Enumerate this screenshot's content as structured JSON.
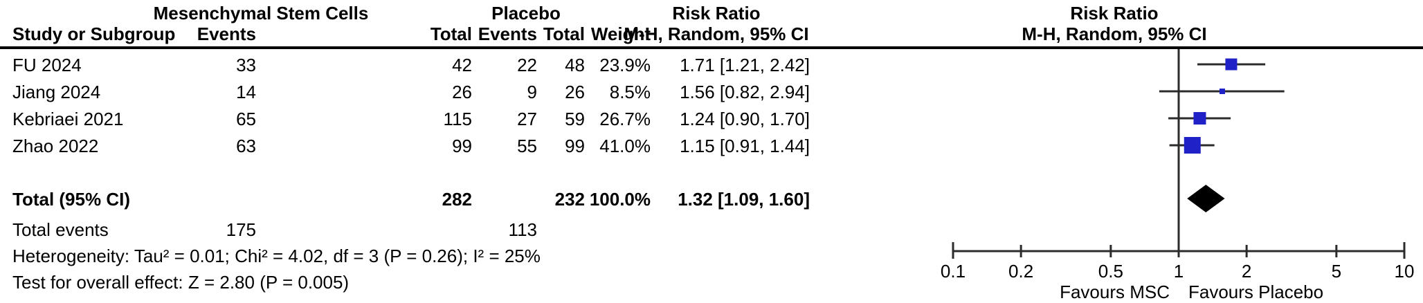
{
  "table": {
    "header": {
      "group_msc": "Mesenchymal Stem Cells",
      "group_placebo": "Placebo",
      "risk_ratio_left": "Risk Ratio",
      "risk_ratio_right": "Risk Ratio",
      "col_study": "Study or Subgroup",
      "col_msc_events": "Events",
      "col_msc_total": "Total",
      "col_pl_events": "Events",
      "col_pl_total": "Total",
      "col_weight": "Weight",
      "col_ci_left": "M-H, Random, 95% CI",
      "col_ci_right": "M-H, Random, 95% CI"
    },
    "rows": [
      {
        "study": "FU 2024",
        "msc_events": "33",
        "msc_total": "42",
        "pl_events": "22",
        "pl_total": "48",
        "weight": "23.9%",
        "ci": "1.71 [1.21, 2.42]"
      },
      {
        "study": "Jiang 2024",
        "msc_events": "14",
        "msc_total": "26",
        "pl_events": "9",
        "pl_total": "26",
        "weight": "8.5%",
        "ci": "1.56 [0.82, 2.94]"
      },
      {
        "study": "Kebriaei 2021",
        "msc_events": "65",
        "msc_total": "115",
        "pl_events": "27",
        "pl_total": "59",
        "weight": "26.7%",
        "ci": "1.24 [0.90, 1.70]"
      },
      {
        "study": "Zhao 2022",
        "msc_events": "63",
        "msc_total": "99",
        "pl_events": "55",
        "pl_total": "99",
        "weight": "41.0%",
        "ci": "1.15 [0.91, 1.44]"
      }
    ],
    "total": {
      "label": "Total (95% CI)",
      "msc_total": "282",
      "pl_total": "232",
      "weight": "100.0%",
      "ci": "1.32 [1.09, 1.60]"
    },
    "total_events": {
      "label": "Total events",
      "msc": "175",
      "pl": "113"
    },
    "heterogeneity": "Heterogeneity: Tau² = 0.01; Chi² = 4.02, df = 3 (P = 0.26); I² = 25%",
    "overall_effect": "Test for overall effect: Z = 2.80 (P = 0.005)"
  },
  "chart_data": {
    "type": "scatter",
    "chart_kind": "forest_plot",
    "effect_measure": "Risk Ratio, M-H, Random, 95% CI",
    "x_scale": "log10",
    "x_range": [
      0.1,
      10
    ],
    "x_ticks": [
      0.1,
      0.2,
      0.5,
      1,
      2,
      5,
      10
    ],
    "null_line": 1,
    "studies": [
      {
        "name": "FU 2024",
        "rr": 1.71,
        "ci_low": 1.21,
        "ci_high": 2.42,
        "weight_pct": 23.9
      },
      {
        "name": "Jiang 2024",
        "rr": 1.56,
        "ci_low": 0.82,
        "ci_high": 2.94,
        "weight_pct": 8.5
      },
      {
        "name": "Kebriaei 2021",
        "rr": 1.24,
        "ci_low": 0.9,
        "ci_high": 1.7,
        "weight_pct": 26.7
      },
      {
        "name": "Zhao 2022",
        "rr": 1.15,
        "ci_low": 0.91,
        "ci_high": 1.44,
        "weight_pct": 41.0
      }
    ],
    "summary": {
      "label": "Total (95% CI)",
      "rr": 1.32,
      "ci_low": 1.09,
      "ci_high": 1.6
    },
    "favours_left": "Favours MSC",
    "favours_right": "Favours Placebo",
    "marker_color": "#2121c8",
    "summary_color": "#000000",
    "line_color": "#2b2b2b"
  }
}
